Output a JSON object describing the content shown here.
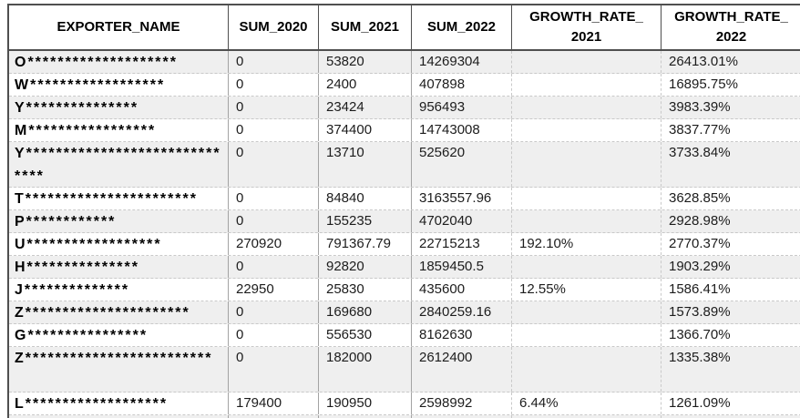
{
  "colors": {
    "row_alt_bg": "#efefef",
    "row_bg": "#ffffff",
    "grid_solid": "#a3a3a3",
    "grid_dashed": "#c9c9c9",
    "header_border": "#4f4f4f",
    "text": "#000000",
    "number_text": "#1c1c1c"
  },
  "table": {
    "header": [
      {
        "l1": "EXPORTER_NAME"
      },
      {
        "l1": "SUM_2020"
      },
      {
        "l1": "SUM_2021"
      },
      {
        "l1": "SUM_2022"
      },
      {
        "l1": "GROWTH_RATE_",
        "l2": "2021"
      },
      {
        "l1": "GROWTH_RATE_",
        "l2": "2022"
      }
    ],
    "rows": [
      {
        "exporter_name": "O********************",
        "sum_2020": "0",
        "sum_2021": "53820",
        "sum_2022": "14269304",
        "growth_rate_2021": "",
        "growth_rate_2022": "26413.01%",
        "tall": false
      },
      {
        "exporter_name": "W******************",
        "sum_2020": "0",
        "sum_2021": "2400",
        "sum_2022": "407898",
        "growth_rate_2021": "",
        "growth_rate_2022": "16895.75%",
        "tall": false
      },
      {
        "exporter_name": "Y***************",
        "sum_2020": "0",
        "sum_2021": "23424",
        "sum_2022": "956493",
        "growth_rate_2021": "",
        "growth_rate_2022": "3983.39%",
        "tall": false
      },
      {
        "exporter_name": "M*****************",
        "sum_2020": "0",
        "sum_2021": "374400",
        "sum_2022": "14743008",
        "growth_rate_2021": "",
        "growth_rate_2022": "3837.77%",
        "tall": false
      },
      {
        "exporter_name": "Y******************************",
        "sum_2020": "0",
        "sum_2021": "13710",
        "sum_2022": "525620",
        "growth_rate_2021": "",
        "growth_rate_2022": "3733.84%",
        "tall": true
      },
      {
        "exporter_name": "T***********************",
        "sum_2020": "0",
        "sum_2021": "84840",
        "sum_2022": "3163557.96",
        "growth_rate_2021": "",
        "growth_rate_2022": "3628.85%",
        "tall": false
      },
      {
        "exporter_name": "P************",
        "sum_2020": "0",
        "sum_2021": "155235",
        "sum_2022": "4702040",
        "growth_rate_2021": "",
        "growth_rate_2022": "2928.98%",
        "tall": false
      },
      {
        "exporter_name": "U******************",
        "sum_2020": "270920",
        "sum_2021": "791367.79",
        "sum_2022": "22715213",
        "growth_rate_2021": "192.10%",
        "growth_rate_2022": "2770.37%",
        "tall": false
      },
      {
        "exporter_name": "H***************",
        "sum_2020": "0",
        "sum_2021": "92820",
        "sum_2022": "1859450.5",
        "growth_rate_2021": "",
        "growth_rate_2022": "1903.29%",
        "tall": false
      },
      {
        "exporter_name": "J**************",
        "sum_2020": "22950",
        "sum_2021": "25830",
        "sum_2022": "435600",
        "growth_rate_2021": "12.55%",
        "growth_rate_2022": "1586.41%",
        "tall": false
      },
      {
        "exporter_name": "Z**********************",
        "sum_2020": "0",
        "sum_2021": "169680",
        "sum_2022": "2840259.16",
        "growth_rate_2021": "",
        "growth_rate_2022": "1573.89%",
        "tall": false
      },
      {
        "exporter_name": "G****************",
        "sum_2020": "0",
        "sum_2021": "556530",
        "sum_2022": "8162630",
        "growth_rate_2021": "",
        "growth_rate_2022": "1366.70%",
        "tall": false
      },
      {
        "exporter_name": "Z*************************",
        "sum_2020": "0",
        "sum_2021": "182000",
        "sum_2022": "2612400",
        "growth_rate_2021": "",
        "growth_rate_2022": "1335.38%",
        "tall": true
      },
      {
        "exporter_name": "L*******************",
        "sum_2020": "179400",
        "sum_2021": "190950",
        "sum_2022": "2598992",
        "growth_rate_2021": "6.44%",
        "growth_rate_2022": "1261.09%",
        "tall": false
      }
    ]
  }
}
